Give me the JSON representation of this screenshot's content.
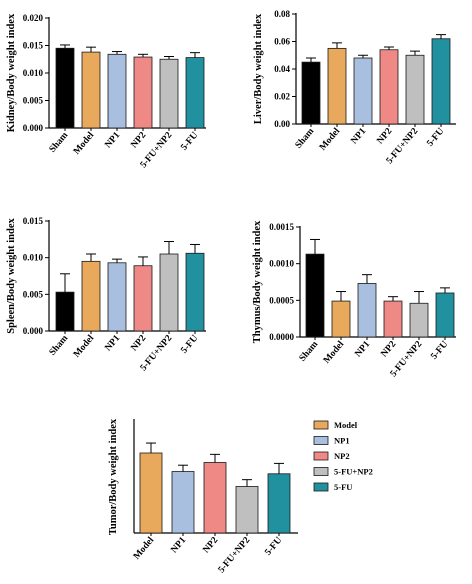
{
  "colors": {
    "Sham": "#000000",
    "Model": "#e9a95d",
    "NP1": "#a9bfe0",
    "NP2": "#ee8986",
    "5-FU+NP2": "#bfbfbf",
    "5-FU": "#21919f"
  },
  "legend": {
    "entries": [
      "Model",
      "NP1",
      "NP2",
      "5-FU+NP2",
      "5-FU"
    ]
  },
  "chart_data": [
    {
      "type": "bar",
      "ylabel": "Kidney/Body weight index",
      "categories": [
        "Sham",
        "Model",
        "NP1",
        "NP2",
        "5-FU+NP2",
        "5-FU"
      ],
      "values": [
        0.0145,
        0.0138,
        0.0134,
        0.0129,
        0.0125,
        0.0128
      ],
      "errors": [
        0.0006,
        0.0009,
        0.0005,
        0.0005,
        0.0005,
        0.0009
      ],
      "ylim": [
        0,
        0.02
      ],
      "yticks": [
        "0.000",
        "0.005",
        "0.010",
        "0.015",
        "0.020"
      ]
    },
    {
      "type": "bar",
      "ylabel": "Liver/Body weight index",
      "categories": [
        "Sham",
        "Model",
        "NP1",
        "NP2",
        "5-FU+NP2",
        "5-FU"
      ],
      "values": [
        0.045,
        0.055,
        0.048,
        0.054,
        0.05,
        0.062
      ],
      "errors": [
        0.003,
        0.004,
        0.002,
        0.002,
        0.003,
        0.003
      ],
      "ylim": [
        0,
        0.08
      ],
      "yticks": [
        "0.00",
        "0.02",
        "0.04",
        "0.06",
        "0.08"
      ]
    },
    {
      "type": "bar",
      "ylabel": "Spleen/Body weight index",
      "categories": [
        "Sham",
        "Model",
        "NP1",
        "NP2",
        "5-FU+NP2",
        "5-FU"
      ],
      "values": [
        0.0053,
        0.0095,
        0.0093,
        0.0089,
        0.0105,
        0.0106
      ],
      "errors": [
        0.0025,
        0.001,
        0.0005,
        0.0012,
        0.0017,
        0.0012
      ],
      "ylim": [
        0,
        0.015
      ],
      "yticks": [
        "0.000",
        "0.005",
        "0.010",
        "0.015"
      ]
    },
    {
      "type": "bar",
      "ylabel": "Thymus/Body weight index",
      "categories": [
        "Sham",
        "Model",
        "NP1",
        "NP2",
        "5-FU+NP2",
        "5-FU"
      ],
      "values": [
        0.00113,
        0.00049,
        0.00073,
        0.00049,
        0.00046,
        0.0006
      ],
      "errors": [
        0.0002,
        0.00013,
        0.00012,
        6e-05,
        0.00016,
        7e-05
      ],
      "ylim": [
        0,
        0.0015
      ],
      "yticks": [
        "0.0000",
        "0.0005",
        "0.0010",
        "0.0015"
      ]
    },
    {
      "type": "bar",
      "ylabel": "Tumor/Body weight index",
      "categories": [
        "Model",
        "NP1",
        "NP2",
        "5-FU+NP2",
        "5-FU"
      ],
      "values": [
        17.7,
        13.6,
        15.6,
        10.3,
        13.1
      ],
      "errors": [
        2.2,
        1.4,
        1.8,
        1.5,
        2.3
      ],
      "ylim": [
        0,
        25
      ],
      "yticks": []
    }
  ]
}
